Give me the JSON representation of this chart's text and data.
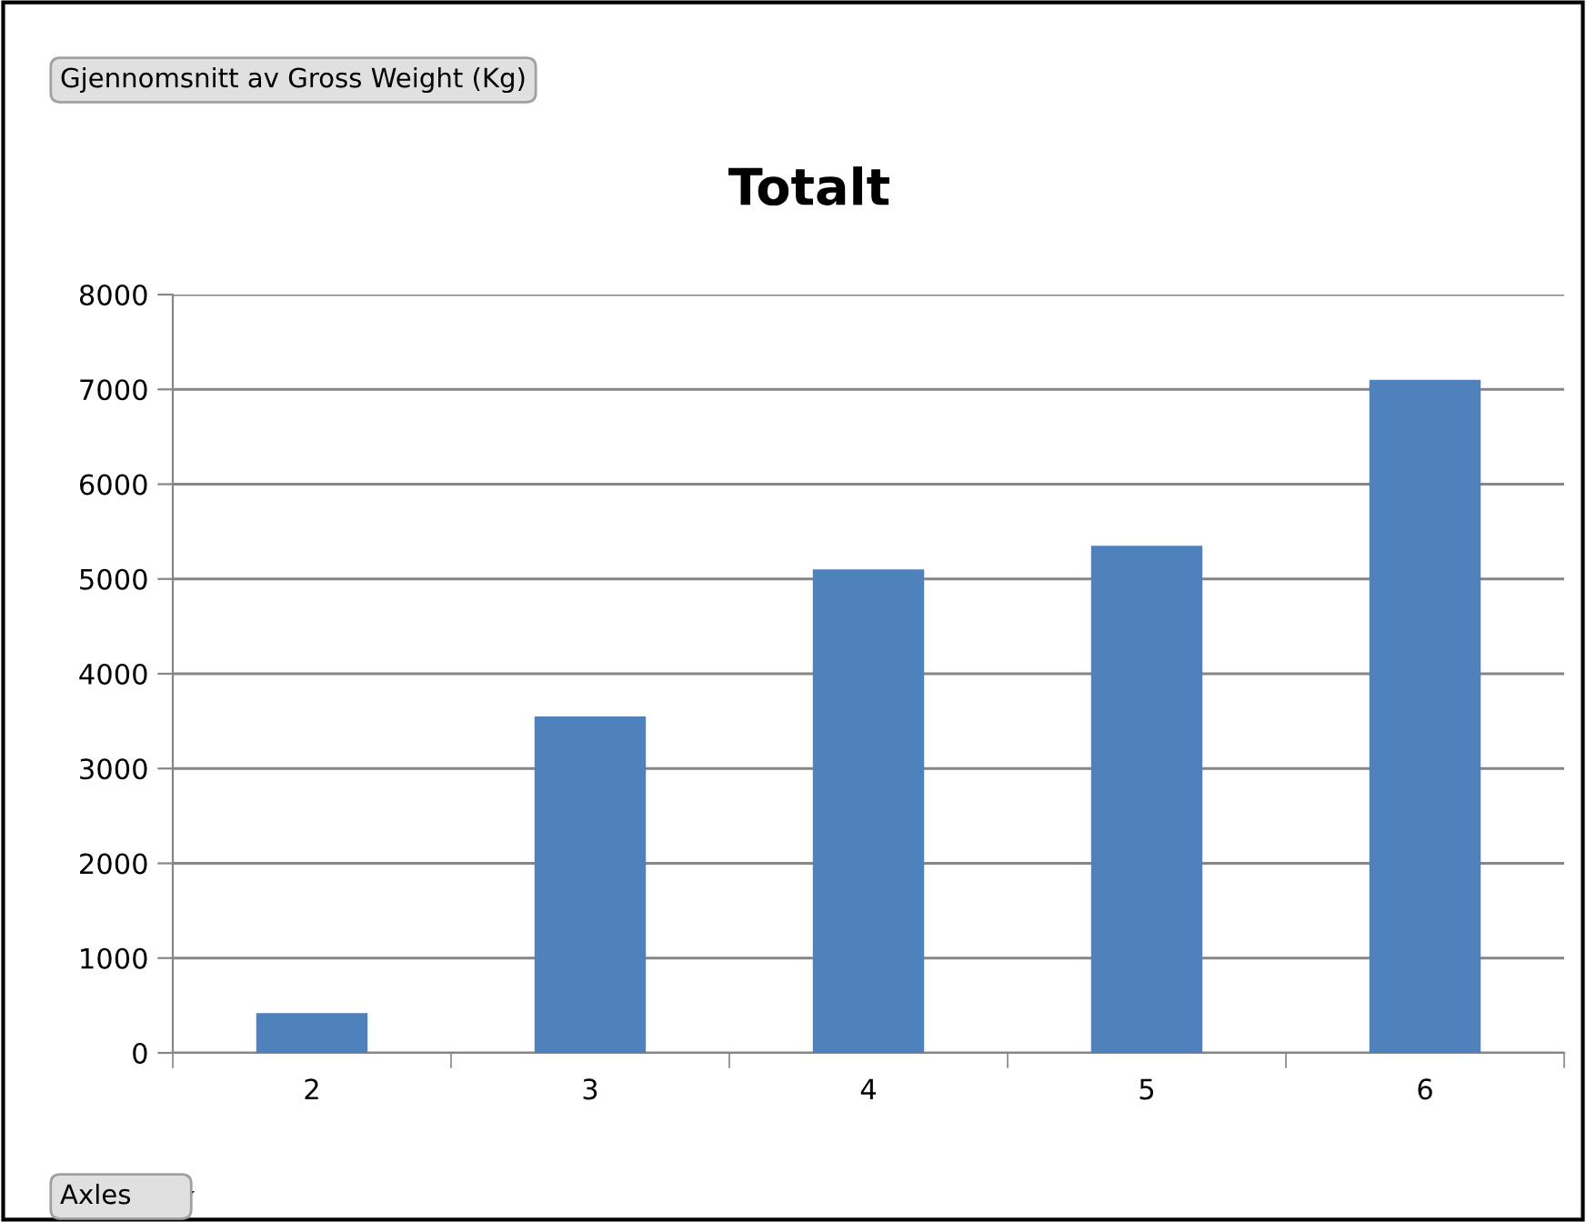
{
  "chart_data": {
    "type": "bar",
    "title": "Totalt",
    "categories": [
      "2",
      "3",
      "4",
      "5",
      "6"
    ],
    "values": [
      420,
      3550,
      5100,
      5350,
      7100
    ],
    "color": "#4f81bd",
    "ylim": [
      0,
      8000
    ],
    "yticks": [
      0,
      1000,
      2000,
      3000,
      4000,
      5000,
      6000,
      7000,
      8000
    ],
    "grid": "y",
    "annotations": [
      "Gjennomsnitt av Gross Weight (Kg)",
      "Axles"
    ]
  }
}
